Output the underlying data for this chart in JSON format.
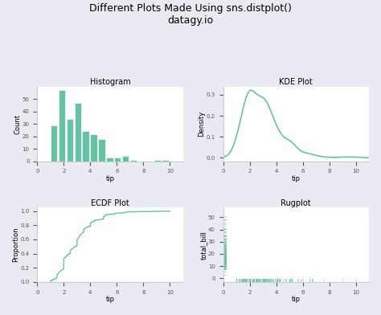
{
  "title": "Different Plots Made Using sns.distplot()\ndatagy.io",
  "title_fontsize": 9,
  "color": "#66c2a5",
  "subplot_titles": [
    "Histogram",
    "KDE Plot",
    "ECDF Plot",
    "Rugplot"
  ],
  "xlabel": "tip",
  "hist_ylabel": "Count",
  "kde_ylabel": "Density",
  "ecdf_ylabel": "Proportion",
  "rug_ylabel": "total_bill",
  "background_color": "#eaeaf2",
  "axes_bg": "#ffffff",
  "hist_bins": 15,
  "hist_xlim": [
    0,
    11
  ],
  "kde_xlim": [
    0,
    11
  ],
  "ecdf_xlim": [
    0,
    11
  ],
  "rug_xlim": [
    0,
    11
  ],
  "rug_ylim": [
    -5,
    58
  ]
}
